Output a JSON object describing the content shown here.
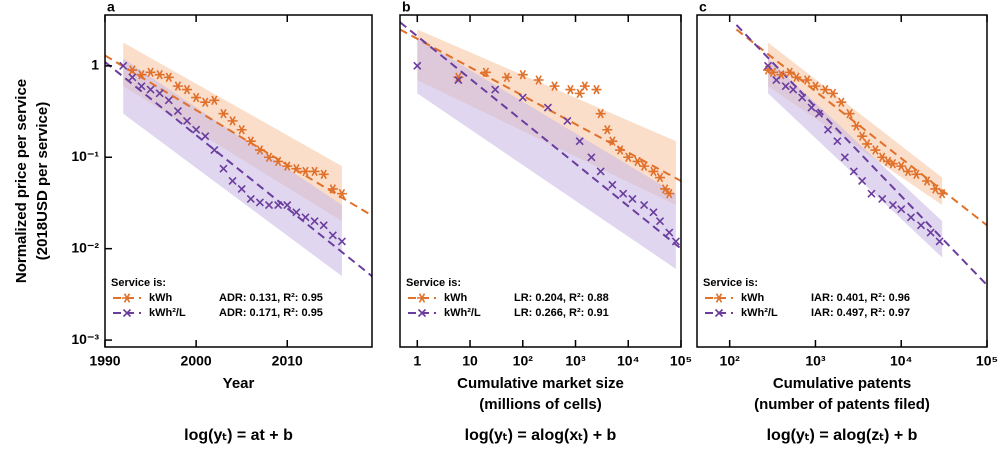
{
  "chart_data": [
    {
      "type": "scatter",
      "panel": "a",
      "xlog": false,
      "ylog": true,
      "ylabel": [
        "Normalized price per service",
        "(2018USD per service)"
      ],
      "xlabel": [
        "Year"
      ],
      "equation": "log(yₜ) = at + b",
      "xlim": [
        1990,
        2019.3
      ],
      "ylim": [
        0.00084,
        3.6
      ],
      "xticks": [
        1990,
        2000,
        2010
      ],
      "yticks": [
        {
          "value": 1,
          "label": "1"
        },
        {
          "value": 0.1,
          "label": "10⁻¹"
        },
        {
          "value": 0.01,
          "label": "10⁻²"
        },
        {
          "value": 0.001,
          "label": "10⁻³"
        }
      ],
      "legend_title": "Service is:",
      "series": [
        {
          "name": "kWh",
          "color": "#e0702a",
          "band_color": "#f6c8a6",
          "marker": "star",
          "fit_label": "ADR: 0.131, R²: 0.95",
          "x": [
            1993,
            1994,
            1995,
            1996,
            1997,
            1998,
            1999,
            2000,
            2001,
            2002,
            2003,
            2004,
            2005,
            2006,
            2007,
            2008,
            2009,
            2010,
            2011,
            2012,
            2013,
            2014,
            2015,
            2016
          ],
          "values": [
            0.9,
            0.8,
            0.85,
            0.8,
            0.75,
            0.6,
            0.55,
            0.45,
            0.4,
            0.42,
            0.3,
            0.25,
            0.2,
            0.15,
            0.12,
            0.1,
            0.09,
            0.08,
            0.075,
            0.07,
            0.07,
            0.065,
            0.045,
            0.04
          ],
          "fit": {
            "x": [
              1990,
              2019.3
            ],
            "values": [
              1.3,
              0.023
            ]
          },
          "band": {
            "x": [
              1992,
              2016
            ],
            "upper": [
              1.8,
              0.08
            ],
            "lower": [
              0.6,
              0.02
            ]
          }
        },
        {
          "name": "kWh²/L",
          "color": "#6a3d9e",
          "band_color": "#cbbbe4",
          "marker": "cross",
          "fit_label": "ADR: 0.171, R²: 0.95",
          "x": [
            1992,
            1993,
            1994,
            1995,
            1996,
            1997,
            1998,
            1999,
            2000,
            2001,
            2002,
            2003,
            2004,
            2005,
            2006,
            2007,
            2008,
            2009,
            2010,
            2011,
            2012,
            2013,
            2014,
            2015,
            2016
          ],
          "values": [
            1.0,
            0.75,
            0.6,
            0.55,
            0.5,
            0.42,
            0.32,
            0.25,
            0.2,
            0.17,
            0.12,
            0.075,
            0.055,
            0.045,
            0.035,
            0.032,
            0.03,
            0.03,
            0.03,
            0.025,
            0.022,
            0.02,
            0.018,
            0.014,
            0.012
          ],
          "fit": {
            "x": [
              1990,
              2019.3
            ],
            "values": [
              1.1,
              0.005
            ]
          },
          "band": {
            "x": [
              1992,
              2016
            ],
            "upper": [
              1.2,
              0.03
            ],
            "lower": [
              0.3,
              0.005
            ]
          }
        }
      ]
    },
    {
      "type": "scatter",
      "panel": "b",
      "xlog": true,
      "ylog": true,
      "show_ytick_labels": false,
      "xlabel": [
        "Cumulative market size",
        "(millions of cells)"
      ],
      "equation": "log(yₜ) = alog(xₜ) + b",
      "xlim": [
        0.47,
        100000
      ],
      "ylim": [
        0.00084,
        3.6
      ],
      "xticks": [
        1,
        10,
        {
          "value": 100,
          "label": "10²"
        },
        {
          "value": 1000,
          "label": "10³"
        },
        {
          "value": 10000,
          "label": "10⁴"
        },
        {
          "value": 100000,
          "label": "10⁵"
        }
      ],
      "legend_title": "Service is:",
      "series": [
        {
          "name": "kWh",
          "color": "#e0702a",
          "band_color": "#f6c8a6",
          "marker": "star",
          "fit_label": "LR: 0.204, R²: 0.88",
          "x": [
            6,
            20,
            50,
            100,
            200,
            400,
            800,
            1200,
            1500,
            2500,
            3000,
            4000,
            5000,
            7000,
            10000,
            15000,
            20000,
            30000,
            40000,
            50000,
            60000
          ],
          "values": [
            0.75,
            0.85,
            0.75,
            0.8,
            0.7,
            0.6,
            0.55,
            0.5,
            0.6,
            0.55,
            0.3,
            0.2,
            0.15,
            0.12,
            0.1,
            0.09,
            0.08,
            0.07,
            0.06,
            0.045,
            0.04
          ],
          "fit": {
            "x": [
              0.47,
              100000
            ],
            "values": [
              2.5,
              0.055
            ]
          },
          "band": {
            "x": [
              1,
              80000
            ],
            "upper": [
              2.5,
              0.15
            ],
            "lower": [
              0.7,
              0.03
            ]
          }
        },
        {
          "name": "kWh²/L",
          "color": "#6a3d9e",
          "band_color": "#cbbbe4",
          "marker": "cross",
          "fit_label": "LR: 0.266, R²: 0.91",
          "x": [
            1,
            6,
            30,
            100,
            300,
            700,
            1200,
            2000,
            3000,
            5000,
            8000,
            12000,
            20000,
            30000,
            40000,
            60000,
            80000
          ],
          "values": [
            1.0,
            0.7,
            0.55,
            0.45,
            0.35,
            0.25,
            0.15,
            0.1,
            0.07,
            0.05,
            0.04,
            0.035,
            0.03,
            0.025,
            0.02,
            0.015,
            0.012
          ],
          "fit": {
            "x": [
              0.47,
              100000
            ],
            "values": [
              3.0,
              0.01
            ]
          },
          "band": {
            "x": [
              1,
              80000
            ],
            "upper": [
              2.0,
              0.04
            ],
            "lower": [
              0.5,
              0.006
            ]
          }
        }
      ]
    },
    {
      "type": "scatter",
      "panel": "c",
      "xlog": true,
      "ylog": true,
      "show_ytick_labels": false,
      "xlabel": [
        "Cumulative patents",
        "(number of patents filed)"
      ],
      "equation": "log(yₜ) = alog(zₜ) + b",
      "xlim": [
        41.6,
        100000
      ],
      "ylim": [
        0.00084,
        3.6
      ],
      "xticks": [
        {
          "value": 100,
          "label": "10²"
        },
        {
          "value": 1000,
          "label": "10³"
        },
        {
          "value": 10000,
          "label": "10⁴"
        },
        {
          "value": 100000,
          "label": "10⁵"
        }
      ],
      "legend_title": "Service is:",
      "series": [
        {
          "name": "kWh",
          "color": "#e0702a",
          "band_color": "#f6c8a6",
          "marker": "star",
          "fit_label": "IAR: 0.401, R²: 0.96",
          "x": [
            280,
            320,
            400,
            500,
            600,
            800,
            1000,
            1300,
            1600,
            2000,
            2500,
            3000,
            3500,
            4000,
            5000,
            6000,
            7000,
            8000,
            10000,
            12000,
            15000,
            20000,
            25000,
            30000
          ],
          "values": [
            0.9,
            0.85,
            0.8,
            0.85,
            0.75,
            0.7,
            0.6,
            0.55,
            0.5,
            0.4,
            0.3,
            0.22,
            0.17,
            0.14,
            0.12,
            0.1,
            0.09,
            0.085,
            0.08,
            0.07,
            0.065,
            0.055,
            0.045,
            0.04
          ],
          "fit": {
            "x": [
              120,
              100000
            ],
            "values": [
              2.5,
              0.018
            ]
          },
          "band": {
            "x": [
              280,
              30000
            ],
            "upper": [
              1.8,
              0.06
            ],
            "lower": [
              0.6,
              0.03
            ]
          }
        },
        {
          "name": "kWh²/L",
          "color": "#6a3d9e",
          "band_color": "#cbbbe4",
          "marker": "cross",
          "fit_label": "IAR: 0.497, R²: 0.97",
          "x": [
            280,
            350,
            450,
            550,
            700,
            900,
            1100,
            1400,
            1800,
            2200,
            2800,
            3500,
            4500,
            6000,
            8000,
            10000,
            13000,
            17000,
            22000,
            28000
          ],
          "values": [
            1.0,
            0.7,
            0.6,
            0.55,
            0.45,
            0.35,
            0.3,
            0.2,
            0.15,
            0.1,
            0.07,
            0.055,
            0.04,
            0.035,
            0.03,
            0.027,
            0.022,
            0.018,
            0.015,
            0.012
          ],
          "fit": {
            "x": [
              120,
              100000
            ],
            "values": [
              2.8,
              0.004
            ]
          },
          "band": {
            "x": [
              280,
              30000
            ],
            "upper": [
              1.2,
              0.02
            ],
            "lower": [
              0.5,
              0.008
            ]
          }
        }
      ]
    }
  ]
}
